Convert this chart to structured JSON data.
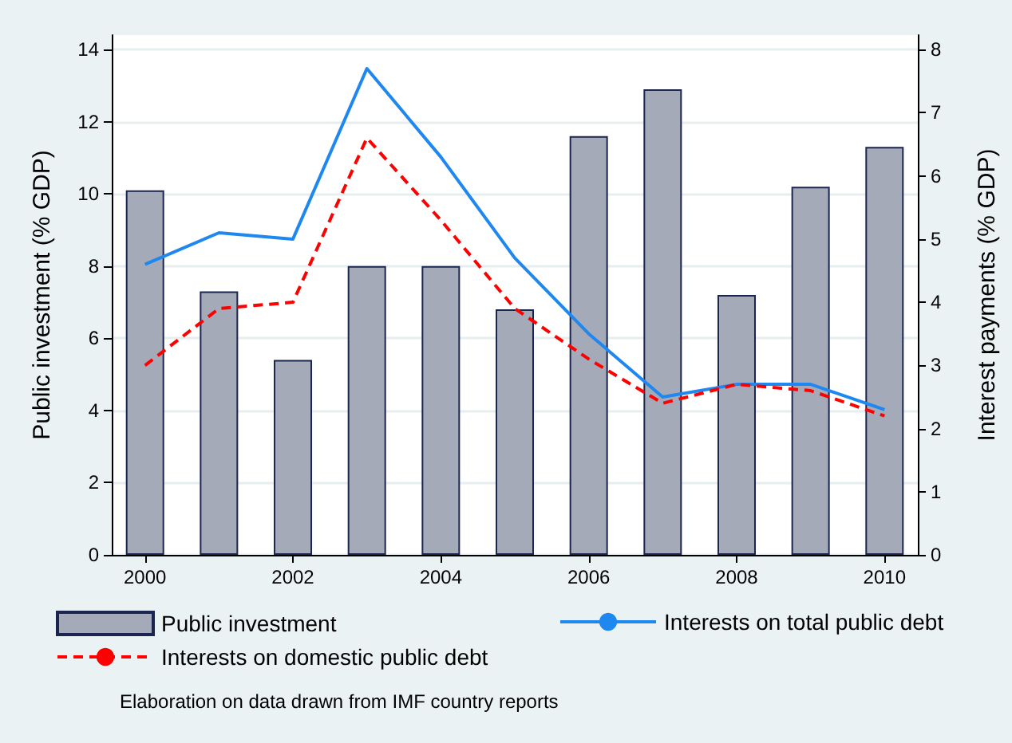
{
  "chart_data": {
    "type": "bar",
    "x": [
      2000,
      2001,
      2002,
      2003,
      2004,
      2005,
      2006,
      2007,
      2008,
      2009,
      2010
    ],
    "xlim": [
      1999.55,
      2010.45
    ],
    "xticks": [
      2000,
      2002,
      2004,
      2006,
      2008,
      2010
    ],
    "ylabel": "Public investment (% GDP)",
    "y2label": "Interest payments (% GDP)",
    "ylim": [
      0,
      14.4
    ],
    "yticks": [
      0,
      2,
      4,
      6,
      8,
      10,
      12,
      14
    ],
    "y2lim": [
      0,
      8.23
    ],
    "y2ticks": [
      0,
      1,
      2,
      3,
      4,
      5,
      6,
      7,
      8
    ],
    "series": [
      {
        "name": "Public investment",
        "color": "#a5aab9",
        "values": [
          10.1,
          7.3,
          5.4,
          8,
          8,
          6.8,
          11.6,
          12.9,
          7.2,
          10.2,
          11.3
        ]
      },
      {
        "name": "Interests on total public debt",
        "type": "line",
        "axis": "y2",
        "color": "#1e88f0",
        "line_style": "solid",
        "values": [
          4.6,
          5.1,
          5.0,
          7.7,
          6.3,
          4.7,
          3.5,
          2.5,
          2.7,
          2.7,
          2.3
        ]
      },
      {
        "name": "Interests on domestic public debt",
        "type": "line",
        "axis": "y2",
        "color": "#ff0000",
        "line_style": "dashed",
        "values": [
          3.0,
          3.9,
          4.0,
          6.6,
          5.3,
          3.9,
          3.1,
          2.4,
          2.7,
          2.6,
          2.2
        ]
      }
    ],
    "grid": "y",
    "legend": "bottom",
    "marker": "none",
    "annotations": [
      "Elaboration on data drawn from IMF country reports"
    ]
  }
}
